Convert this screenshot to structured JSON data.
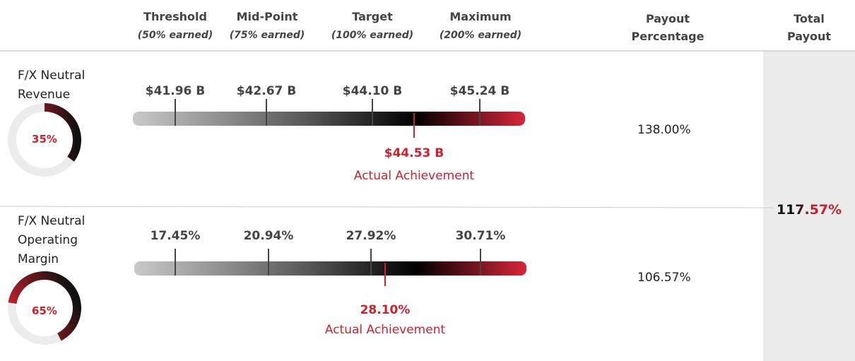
{
  "header": {
    "levels": [
      {
        "name": "Threshold",
        "note": "(50% earned)"
      },
      {
        "name": "Mid-Point",
        "note": "(75% earned)"
      },
      {
        "name": "Target",
        "note": "(100% earned)"
      },
      {
        "name": "Maximum",
        "note": "(200% earned)"
      }
    ],
    "payout": "Payout Percentage",
    "total": "Total Payout"
  },
  "metrics": [
    {
      "label": "F/X Neutral Revenue",
      "weight": "35%",
      "levels": [
        "$41.96 B",
        "$42.67 B",
        "$44.10 B",
        "$45.24 B"
      ],
      "actual": "$44.53 B",
      "actual_label": "Actual Achievement",
      "payout": "138.00%"
    },
    {
      "label": "F/X Neutral Operating Margin",
      "weight": "65%",
      "levels": [
        "17.45%",
        "20.94%",
        "27.92%",
        "30.71%"
      ],
      "actual": "28.10%",
      "actual_label": "Actual Achievement",
      "payout": "106.57%"
    }
  ],
  "total": "117.57%"
}
